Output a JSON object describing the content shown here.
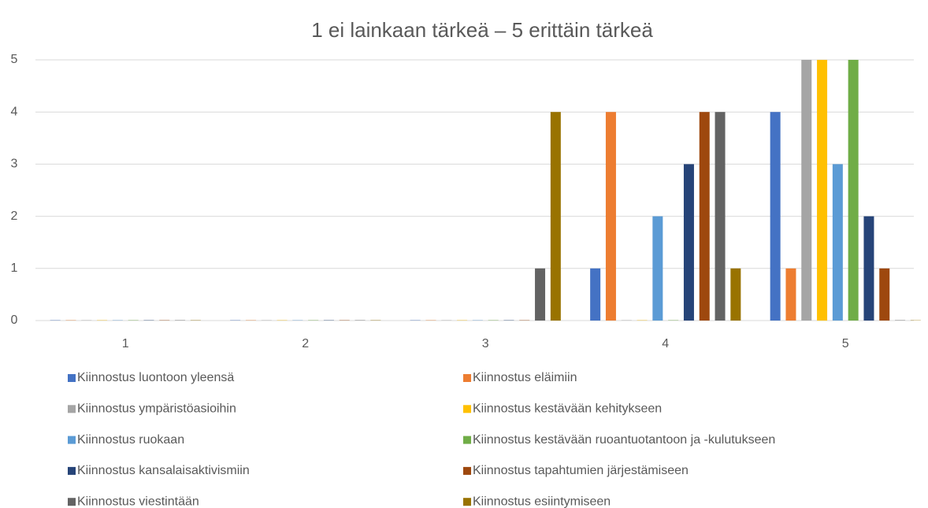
{
  "chart_data": {
    "type": "bar",
    "title": "1 ei lainkaan tärkeä – 5 erittäin tärkeä",
    "categories": [
      "1",
      "2",
      "3",
      "4",
      "5"
    ],
    "ylim": [
      0,
      5
    ],
    "yticks": [
      0,
      1,
      2,
      3,
      4,
      5
    ],
    "grid": true,
    "legend": "bottom",
    "series": [
      {
        "name": "Kiinnostus luontoon yleensä",
        "color": "#4472c4",
        "values": [
          0,
          0,
          0,
          1,
          4
        ]
      },
      {
        "name": "Kiinnostus eläimiin",
        "color": "#ed7d31",
        "values": [
          0,
          0,
          0,
          4,
          1
        ]
      },
      {
        "name": "Kiinnostus ympäristöasioihin",
        "color": "#a5a5a5",
        "values": [
          0,
          0,
          0,
          0,
          5
        ]
      },
      {
        "name": "Kiinnostus kestävään kehitykseen",
        "color": "#ffc000",
        "values": [
          0,
          0,
          0,
          0,
          5
        ]
      },
      {
        "name": "Kiinnostus ruokaan",
        "color": "#5b9bd5",
        "values": [
          0,
          0,
          0,
          2,
          3
        ]
      },
      {
        "name": "Kiinnostus kestävään ruoantuotantoon ja -kulutukseen",
        "color": "#70ad47",
        "values": [
          0,
          0,
          0,
          0,
          5
        ]
      },
      {
        "name": "Kiinnostus kansalaisaktivismiin",
        "color": "#264478",
        "values": [
          0,
          0,
          0,
          3,
          2
        ]
      },
      {
        "name": "Kiinnostus tapahtumien järjestämiseen",
        "color": "#9e480e",
        "values": [
          0,
          0,
          0,
          4,
          1
        ]
      },
      {
        "name": "Kiinnostus viestintään",
        "color": "#636363",
        "values": [
          0,
          0,
          1,
          4,
          0
        ]
      },
      {
        "name": "Kiinnostus esiintymiseen",
        "color": "#997300",
        "values": [
          0,
          0,
          4,
          1,
          0
        ]
      }
    ]
  }
}
